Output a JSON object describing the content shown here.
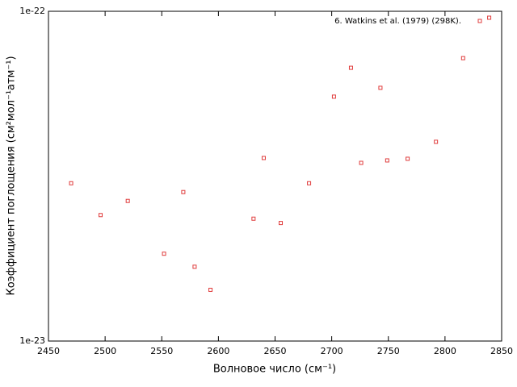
{
  "chart_data": {
    "type": "scatter",
    "x_label": "Волновое число (см⁻¹)",
    "y_label": "Коэффициент поглощения (см²мол⁻¹атм⁻¹)",
    "xlim": [
      2450,
      2850
    ],
    "xticks": [
      2450,
      2500,
      2550,
      2600,
      2650,
      2700,
      2750,
      2800,
      2850
    ],
    "ylim": [
      1e-23,
      1e-22
    ],
    "yticks": [
      {
        "value": 1e-23,
        "label": "1e-23"
      },
      {
        "value": 1e-22,
        "label": "1e-22"
      }
    ],
    "y_log": true,
    "grid": false,
    "legend_position": "top-right",
    "series": [
      {
        "name": "6. Watkins et al. (1979) (298K).",
        "color": "#e03c3c",
        "x": [
          2470,
          2496,
          2520,
          2552,
          2569,
          2579,
          2593,
          2631,
          2640,
          2655,
          2680,
          2702,
          2717,
          2726,
          2743,
          2749,
          2767,
          2792,
          2816,
          2839
        ],
        "values": [
          3.01e-23,
          2.41e-23,
          2.66e-23,
          1.84e-23,
          2.83e-23,
          1.68e-23,
          1.43e-23,
          2.35e-23,
          3.59e-23,
          2.28e-23,
          3.01e-23,
          5.51e-23,
          6.74e-23,
          3.47e-23,
          5.86e-23,
          3.53e-23,
          3.57e-23,
          4.02e-23,
          7.21e-23,
          9.56e-23
        ]
      }
    ]
  }
}
